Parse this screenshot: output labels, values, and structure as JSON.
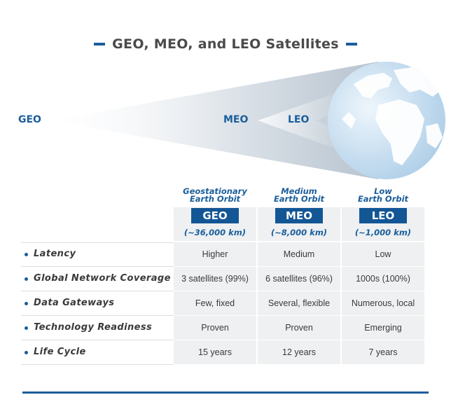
{
  "title": "GEO, MEO, and LEO Satellites",
  "orbits": {
    "geo": "GEO",
    "meo": "MEO",
    "leo": "LEO"
  },
  "columns": [
    {
      "name_line1": "Geostationary",
      "name_line2": "Earth Orbit",
      "badge": "GEO",
      "altitude": "(~36,000 km)"
    },
    {
      "name_line1": "Medium",
      "name_line2": "Earth Orbit",
      "badge": "MEO",
      "altitude": "(~8,000 km)"
    },
    {
      "name_line1": "Low",
      "name_line2": "Earth Orbit",
      "badge": "LEO",
      "altitude": "(~1,000 km)"
    }
  ],
  "rows": [
    {
      "label": "Latency",
      "values": [
        "Higher",
        "Medium",
        "Low"
      ]
    },
    {
      "label": "Global Network Coverage",
      "values": [
        "3 satellites (99%)",
        "6 satellites (96%)",
        "1000s (100%)"
      ]
    },
    {
      "label": "Data Gateways",
      "values": [
        "Few, fixed",
        "Several, flexible",
        "Numerous, local"
      ]
    },
    {
      "label": "Technology Readiness",
      "values": [
        "Proven",
        "Proven",
        "Emerging"
      ]
    },
    {
      "label": "Life Cycle",
      "values": [
        "15 years",
        "12 years",
        "7 years"
      ]
    }
  ],
  "colors": {
    "accent": "#1b5e9b",
    "badge": "#135696",
    "cell": "#eef0f2",
    "earth_land": "#ffffff",
    "earth_ocean": "#c9dff0"
  }
}
